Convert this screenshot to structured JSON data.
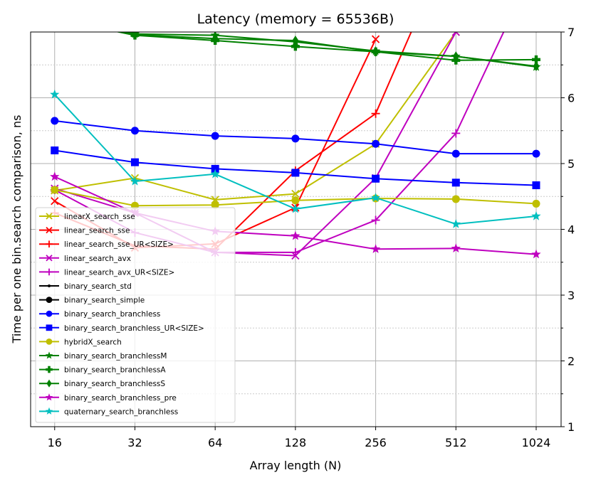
{
  "chart_data": {
    "type": "line",
    "title": "Latency (memory = 65536B)",
    "x_label": "Array length (N)",
    "y_label": "Time per one bin.search comparison, ns",
    "x": [
      16,
      32,
      64,
      128,
      256,
      512,
      1024
    ],
    "x_scale": "log2",
    "xlim": [
      13,
      1270
    ],
    "xticks": [
      16,
      32,
      64,
      128,
      256,
      512,
      1024
    ],
    "ylim": [
      1,
      7
    ],
    "yticks": [
      1,
      2,
      3,
      4,
      5,
      6,
      7
    ],
    "minor_yticks": [
      1.5,
      2.5,
      3.5,
      4.5,
      5.5,
      6.5
    ],
    "y_axis_side": "right",
    "grid": true,
    "legend_position": "lower left",
    "series": [
      {
        "name": "linearX_search_sse",
        "color": "#bfbf00",
        "marker": "x",
        "values": [
          4.59,
          4.78,
          4.45,
          4.54,
          5.3,
          7.0,
          null
        ]
      },
      {
        "name": "linear_search_sse",
        "color": "#ff0000",
        "marker": "x",
        "values": [
          4.43,
          3.72,
          3.78,
          4.33,
          6.89,
          null,
          null
        ]
      },
      {
        "name": "linear_search_sse_UR<SIZE>",
        "color": "#ff0000",
        "marker": "plus",
        "values": [
          4.25,
          3.75,
          3.7,
          4.89,
          5.76,
          8.56,
          null
        ]
      },
      {
        "name": "linear_search_avx",
        "color": "#bf00bf",
        "marker": "x",
        "values": [
          4.62,
          4.25,
          3.65,
          3.6,
          4.78,
          7.0,
          null
        ]
      },
      {
        "name": "linear_search_avx_UR<SIZE>",
        "color": "#bf00bf",
        "marker": "plus",
        "values": [
          4.6,
          3.95,
          3.65,
          3.65,
          4.14,
          5.46,
          8.05
        ]
      },
      {
        "name": "binary_search_std",
        "color": "#000000",
        "marker": "point",
        "values": [
          null,
          null,
          null,
          null,
          null,
          null,
          null
        ]
      },
      {
        "name": "binary_search_simple",
        "color": "#000000",
        "marker": "circle",
        "values": [
          null,
          null,
          null,
          null,
          null,
          null,
          null
        ]
      },
      {
        "name": "binary_search_branchless",
        "color": "#0000ff",
        "marker": "circle",
        "values": [
          5.65,
          5.5,
          5.42,
          5.38,
          5.3,
          5.15,
          5.15
        ]
      },
      {
        "name": "binary_search_branchless_UR<SIZE>",
        "color": "#0000ff",
        "marker": "square",
        "values": [
          5.2,
          5.02,
          4.92,
          4.86,
          4.77,
          4.71,
          4.67
        ]
      },
      {
        "name": "hybridX_search",
        "color": "#bfbf00",
        "marker": "circle",
        "values": [
          4.6,
          4.36,
          4.37,
          4.44,
          4.47,
          4.46,
          4.39
        ]
      },
      {
        "name": "binary_search_branchlessM",
        "color": "#008000",
        "marker": "star",
        "values": [
          7.2,
          6.97,
          6.95,
          6.85,
          6.71,
          6.63,
          6.47
        ]
      },
      {
        "name": "binary_search_branchlessA",
        "color": "#008000",
        "marker": "P",
        "values": [
          7.2,
          6.95,
          6.87,
          6.78,
          6.7,
          6.57,
          6.58
        ]
      },
      {
        "name": "binary_search_branchlessS",
        "color": "#008000",
        "marker": "diamond",
        "values": [
          7.2,
          6.96,
          6.9,
          6.87,
          6.7,
          6.63,
          6.48
        ]
      },
      {
        "name": "binary_search_branchless_pre",
        "color": "#bf00bf",
        "marker": "star",
        "values": [
          4.8,
          4.25,
          3.97,
          3.9,
          3.7,
          3.71,
          3.62
        ]
      },
      {
        "name": "quaternary_search_branchless",
        "color": "#00bfbf",
        "marker": "star",
        "values": [
          6.05,
          4.73,
          4.84,
          4.31,
          4.48,
          4.08,
          4.2
        ]
      }
    ]
  }
}
